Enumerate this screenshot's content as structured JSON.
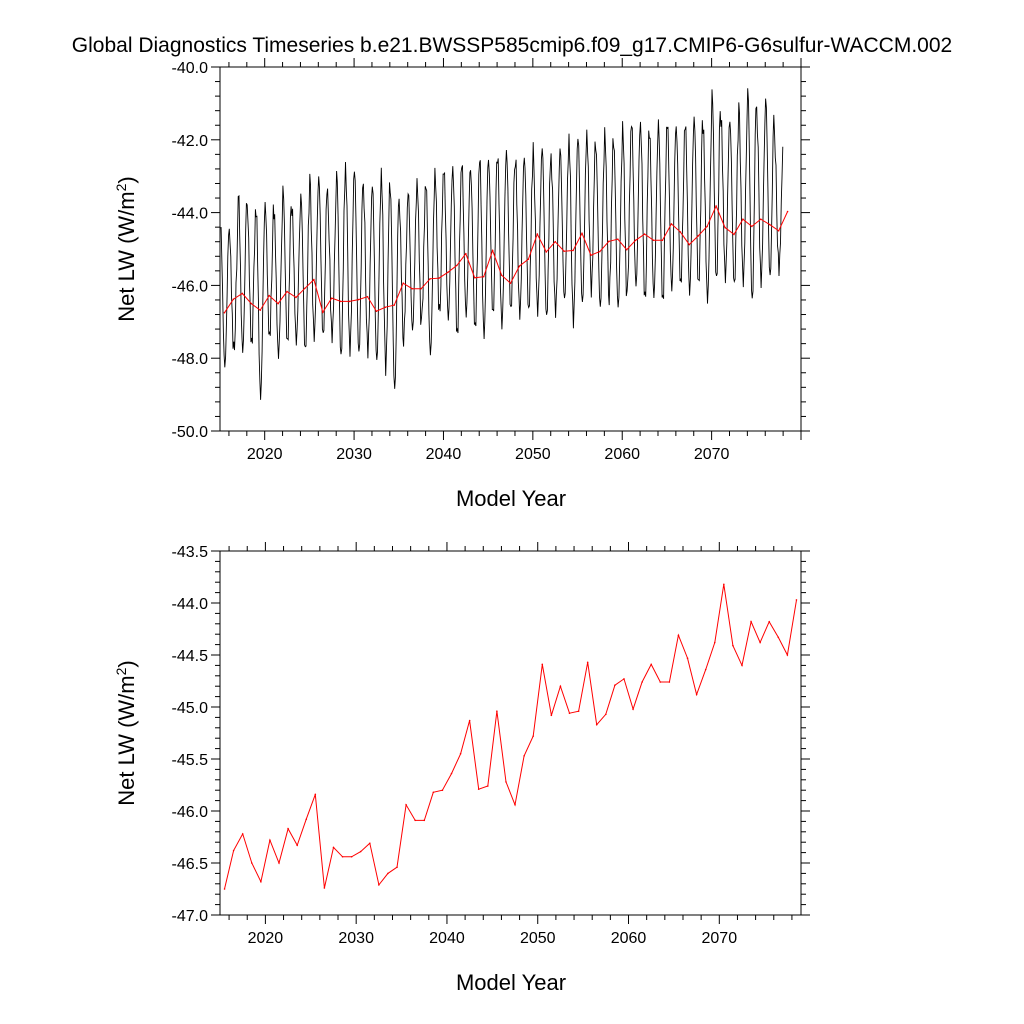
{
  "page": {
    "title": "Global Diagnostics Timeseries b.e21.BWSSP585cmip6.f09_g17.CMIP6-G6sulfur-WACCM.002"
  },
  "colors": {
    "monthly": "#000000",
    "annual": "#ff0000",
    "axis": "#000000"
  },
  "chart_data": [
    {
      "type": "line",
      "panel": "top",
      "xlabel": "Model Year",
      "ylabel_main": "Net LW (W/m",
      "ylabel_sup": "2",
      "ylabel_close": ")",
      "xlim": [
        2015,
        2080
      ],
      "ylim": [
        -50.0,
        -40.0
      ],
      "yticks": [
        -50.0,
        -48.0,
        -46.0,
        -44.0,
        -42.0,
        -40.0
      ],
      "ytick_labels": [
        "-50.0",
        "-48.0",
        "-46.0",
        "-44.0",
        "-42.0",
        "-40.0"
      ],
      "xticks": [
        2020,
        2030,
        2040,
        2050,
        2060,
        2070
      ],
      "xtick_labels": [
        "2020",
        "2030",
        "2040",
        "2050",
        "2060",
        "2070"
      ],
      "series": [
        {
          "kind": "monthly",
          "color": "#000000",
          "start_year": 2015,
          "annual_peak_values": [
            -44.1,
            -44.4,
            -43.2,
            -43.7,
            -43.7,
            -43.6,
            -43.8,
            -43.1,
            -43.7,
            -43.3,
            -43.0,
            -42.8,
            -43.4,
            -42.6,
            -42.6,
            -42.6,
            -43.2,
            -43.0,
            -42.7,
            -43.1,
            -43.6,
            -43.2,
            -43.0,
            -43.0,
            -42.7,
            -42.6,
            -42.6,
            -42.4,
            -42.7,
            -42.2,
            -42.4,
            -42.2,
            -42.1,
            -42.3,
            -42.3,
            -42.1,
            -42.0,
            -42.4,
            -42.0,
            -41.8,
            -41.7,
            -41.7,
            -42.0,
            -41.6,
            -41.9,
            -41.4,
            -41.3,
            -41.4,
            -41.6,
            -41.3,
            -41.3,
            -41.5,
            -41.3,
            -41.2,
            -41.4,
            -40.4,
            -41.2,
            -41.3,
            -41.0,
            -40.3,
            -41.1,
            -40.6,
            -41.9
          ],
          "annual_trough_values": [
            -48.4,
            -47.9,
            -48.0,
            -47.8,
            -49.3,
            -47.6,
            -48.1,
            -47.8,
            -47.7,
            -48.0,
            -47.6,
            -47.6,
            -47.6,
            -48.2,
            -48.0,
            -48.1,
            -48.0,
            -48.3,
            -48.5,
            -49.1,
            -47.6,
            -47.4,
            -47.3,
            -48.1,
            -46.9,
            -47.1,
            -47.6,
            -47.0,
            -47.4,
            -47.6,
            -47.0,
            -47.3,
            -46.9,
            -47.0,
            -46.9,
            -46.9,
            -47.1,
            -46.9,
            -46.6,
            -47.2,
            -46.7,
            -46.3,
            -46.8,
            -46.5,
            -46.8,
            -46.6,
            -46.2,
            -46.6,
            -46.5,
            -46.7,
            -46.3,
            -46.2,
            -46.4,
            -46.2,
            -46.6,
            -46.1,
            -46.0,
            -46.2,
            -46.1,
            -46.7,
            -46.1,
            -46.0,
            -45.7
          ]
        },
        {
          "kind": "annual",
          "color": "#ff0000",
          "x": [
            2015.5,
            2016.5,
            2017.5,
            2018.5,
            2019.5,
            2020.5,
            2021.5,
            2022.5,
            2023.5,
            2024.5,
            2025.5,
            2026.5,
            2027.5,
            2028.5,
            2029.5,
            2030.5,
            2031.5,
            2032.5,
            2033.5,
            2034.5,
            2035.5,
            2036.5,
            2037.5,
            2038.5,
            2039.5,
            2040.5,
            2041.5,
            2042.5,
            2043.5,
            2044.5,
            2045.5,
            2046.5,
            2047.5,
            2048.5,
            2049.5,
            2050.5,
            2051.5,
            2052.5,
            2053.5,
            2054.5,
            2055.5,
            2056.5,
            2057.5,
            2058.5,
            2059.5,
            2060.5,
            2061.5,
            2062.5,
            2063.5,
            2064.5,
            2065.5,
            2066.5,
            2067.5,
            2068.5,
            2069.5,
            2070.5,
            2071.5,
            2072.5,
            2073.5,
            2074.5,
            2075.5,
            2076.5,
            2077.5,
            2078.5
          ],
          "values": [
            -46.75,
            -46.38,
            -46.22,
            -46.5,
            -46.68,
            -46.28,
            -46.5,
            -46.17,
            -46.33,
            -46.08,
            -45.84,
            -46.74,
            -46.35,
            -46.44,
            -46.44,
            -46.39,
            -46.31,
            -46.71,
            -46.6,
            -46.54,
            -45.94,
            -46.09,
            -46.09,
            -45.82,
            -45.8,
            -45.64,
            -45.45,
            -45.13,
            -45.79,
            -45.76,
            -45.04,
            -45.72,
            -45.94,
            -45.47,
            -45.28,
            -44.59,
            -45.08,
            -44.8,
            -45.06,
            -45.04,
            -44.57,
            -45.17,
            -45.07,
            -44.79,
            -44.73,
            -45.02,
            -44.76,
            -44.59,
            -44.76,
            -44.76,
            -44.31,
            -44.53,
            -44.88,
            -44.64,
            -44.38,
            -43.82,
            -44.41,
            -44.6,
            -44.18,
            -44.38,
            -44.18,
            -44.33,
            -44.5,
            -43.97
          ]
        }
      ]
    },
    {
      "type": "line",
      "panel": "bottom",
      "xlabel": "Model Year",
      "ylabel_main": "Net LW (W/m",
      "ylabel_sup": "2",
      "ylabel_close": ")",
      "xlim": [
        2015,
        2079
      ],
      "ylim": [
        -47.0,
        -43.5
      ],
      "yticks": [
        -47.0,
        -46.5,
        -46.0,
        -45.5,
        -45.0,
        -44.5,
        -44.0,
        -43.5
      ],
      "ytick_labels": [
        "-47.0",
        "-46.5",
        "-46.0",
        "-45.5",
        "-45.0",
        "-44.5",
        "-44.0",
        "-43.5"
      ],
      "xticks": [
        2020,
        2030,
        2040,
        2050,
        2060,
        2070
      ],
      "xtick_labels": [
        "2020",
        "2030",
        "2040",
        "2050",
        "2060",
        "2070"
      ],
      "series": [
        {
          "kind": "annual",
          "color": "#ff0000",
          "x": [
            2015.5,
            2016.5,
            2017.5,
            2018.5,
            2019.5,
            2020.5,
            2021.5,
            2022.5,
            2023.5,
            2024.5,
            2025.5,
            2026.5,
            2027.5,
            2028.5,
            2029.5,
            2030.5,
            2031.5,
            2032.5,
            2033.5,
            2034.5,
            2035.5,
            2036.5,
            2037.5,
            2038.5,
            2039.5,
            2040.5,
            2041.5,
            2042.5,
            2043.5,
            2044.5,
            2045.5,
            2046.5,
            2047.5,
            2048.5,
            2049.5,
            2050.5,
            2051.5,
            2052.5,
            2053.5,
            2054.5,
            2055.5,
            2056.5,
            2057.5,
            2058.5,
            2059.5,
            2060.5,
            2061.5,
            2062.5,
            2063.5,
            2064.5,
            2065.5,
            2066.5,
            2067.5,
            2068.5,
            2069.5,
            2070.5,
            2071.5,
            2072.5,
            2073.5,
            2074.5,
            2075.5,
            2076.5,
            2077.5,
            2078.5
          ],
          "values": [
            -46.75,
            -46.38,
            -46.22,
            -46.5,
            -46.68,
            -46.28,
            -46.5,
            -46.17,
            -46.33,
            -46.08,
            -45.84,
            -46.74,
            -46.35,
            -46.44,
            -46.44,
            -46.39,
            -46.31,
            -46.71,
            -46.6,
            -46.54,
            -45.94,
            -46.09,
            -46.09,
            -45.82,
            -45.8,
            -45.64,
            -45.45,
            -45.13,
            -45.79,
            -45.76,
            -45.04,
            -45.72,
            -45.94,
            -45.47,
            -45.28,
            -44.59,
            -45.08,
            -44.8,
            -45.06,
            -45.04,
            -44.57,
            -45.17,
            -45.07,
            -44.79,
            -44.73,
            -45.02,
            -44.76,
            -44.59,
            -44.76,
            -44.76,
            -44.31,
            -44.53,
            -44.88,
            -44.64,
            -44.38,
            -43.82,
            -44.41,
            -44.6,
            -44.18,
            -44.38,
            -44.18,
            -44.33,
            -44.5,
            -43.97
          ]
        }
      ]
    }
  ]
}
